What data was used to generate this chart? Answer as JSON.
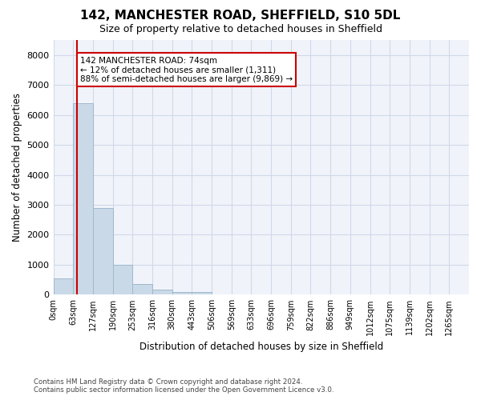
{
  "title": "142, MANCHESTER ROAD, SHEFFIELD, S10 5DL",
  "subtitle": "Size of property relative to detached houses in Sheffield",
  "xlabel": "Distribution of detached houses by size in Sheffield",
  "ylabel": "Number of detached properties",
  "bar_values": [
    550,
    6400,
    2900,
    1000,
    350,
    175,
    100,
    80,
    0,
    0,
    0,
    0,
    0,
    0,
    0,
    0,
    0,
    0,
    0,
    0,
    0
  ],
  "bar_labels": [
    "0sqm",
    "63sqm",
    "127sqm",
    "190sqm",
    "253sqm",
    "316sqm",
    "380sqm",
    "443sqm",
    "506sqm",
    "569sqm",
    "633sqm",
    "696sqm",
    "759sqm",
    "822sqm",
    "886sqm",
    "949sqm",
    "1012sqm",
    "1075sqm",
    "1139sqm",
    "1202sqm",
    "1265sqm"
  ],
  "bar_color": "#c9d9e8",
  "bar_edgecolor": "#a0b8cc",
  "ylim": [
    0,
    8500
  ],
  "yticks": [
    0,
    1000,
    2000,
    3000,
    4000,
    5000,
    6000,
    7000,
    8000
  ],
  "red_line_x": 1.18,
  "annotation_title": "142 MANCHESTER ROAD: 74sqm",
  "annotation_line1": "← 12% of detached houses are smaller (1,311)",
  "annotation_line2": "88% of semi-detached houses are larger (9,869) →",
  "annotation_color": "#cc0000",
  "footer_line1": "Contains HM Land Registry data © Crown copyright and database right 2024.",
  "footer_line2": "Contains public sector information licensed under the Open Government Licence v3.0.",
  "grid_color": "#d0d8e8",
  "bg_color": "#f0f4fa"
}
